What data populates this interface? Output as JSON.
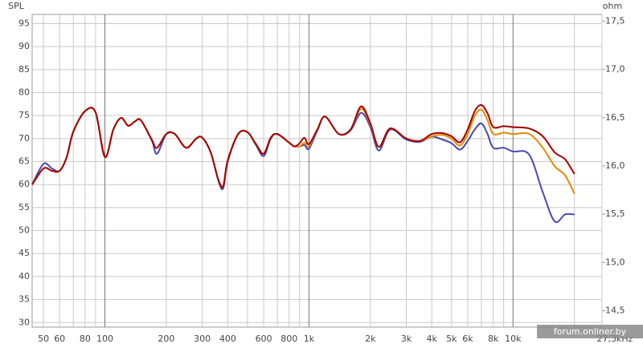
{
  "chart_data": {
    "type": "line",
    "ylabel": "SPL",
    "y2label": "ohm",
    "watermark": "forum.onliner.by",
    "xscale": "log",
    "grid": true,
    "xlim": [
      44,
      27300
    ],
    "ylim": [
      29,
      97
    ],
    "y2lim": [
      14.33,
      17.57
    ],
    "xticks": [
      50,
      60,
      80,
      100,
      200,
      300,
      400,
      600,
      800,
      {
        "value": 1000,
        "label": "1k"
      },
      {
        "value": 2000,
        "label": "2k"
      },
      {
        "value": 3000,
        "label": "3k"
      },
      {
        "value": 4000,
        "label": "4k"
      },
      {
        "value": 5000,
        "label": "5k"
      },
      {
        "value": 6000,
        "label": "6k"
      },
      {
        "value": 8000,
        "label": "8k"
      },
      {
        "value": 10000,
        "label": "10k"
      },
      {
        "value": 27300,
        "label": "27,3kHz"
      }
    ],
    "xminor": [
      70,
      90,
      500,
      700,
      900,
      7000,
      9000,
      20000
    ],
    "yticks": [
      30,
      35,
      40,
      45,
      50,
      55,
      60,
      65,
      70,
      75,
      80,
      85,
      90,
      95
    ],
    "y2ticks": [
      {
        "value": 14.5,
        "label": "14,5"
      },
      {
        "value": 15,
        "label": "15,0"
      },
      {
        "value": 15.5,
        "label": "15,5"
      },
      {
        "value": 16,
        "label": "16,0"
      },
      {
        "value": 16.5,
        "label": "16,5"
      },
      {
        "value": 17,
        "label": "17,0"
      },
      {
        "value": 17.5,
        "label": "17,5"
      }
    ],
    "x": [
      44,
      50,
      55,
      60,
      65,
      70,
      80,
      90,
      100,
      110,
      120,
      130,
      140,
      150,
      170,
      180,
      200,
      220,
      250,
      280,
      300,
      330,
      360,
      380,
      400,
      450,
      500,
      550,
      600,
      650,
      700,
      800,
      850,
      900,
      950,
      1000,
      1100,
      1200,
      1400,
      1600,
      1800,
      2000,
      2200,
      2500,
      3000,
      3500,
      4000,
      4500,
      5000,
      5500,
      6000,
      6500,
      7000,
      7500,
      8000,
      9000,
      10000,
      12000,
      14000,
      16000,
      18000,
      20000
    ],
    "series": [
      {
        "color": "#4848b4",
        "values": [
          60,
          64.5,
          63.5,
          63,
          66,
          71.5,
          76,
          75.7,
          66,
          72,
          74.5,
          72.8,
          73.7,
          74,
          69.5,
          66.7,
          71,
          71,
          68,
          70,
          70.2,
          67,
          60.8,
          59.2,
          65,
          71,
          71.4,
          68.6,
          66.2,
          70,
          71,
          69.1,
          68.3,
          68.3,
          68.6,
          67.8,
          71.8,
          74.8,
          71,
          71.8,
          75.6,
          72.5,
          67.4,
          72,
          69.8,
          69.3,
          70.4,
          69.8,
          69,
          67.6,
          69.5,
          72,
          73.3,
          71,
          68,
          68,
          67.2,
          66.5,
          58.3,
          52,
          53.5,
          53.5
        ]
      },
      {
        "color": "#e38b00",
        "values": [
          60,
          63.5,
          63,
          63,
          66,
          71.5,
          76,
          75.7,
          66,
          72,
          74.5,
          72.8,
          73.7,
          74,
          69.7,
          68,
          71,
          71,
          68,
          70,
          70.2,
          67,
          61,
          59.7,
          65.3,
          71,
          71.4,
          68.8,
          66.7,
          70.2,
          71,
          69.1,
          68.3,
          68.3,
          69.1,
          68.3,
          72,
          74.8,
          71,
          72,
          76.5,
          73,
          68.2,
          72.2,
          70,
          69.5,
          70.5,
          70.8,
          70,
          68.5,
          71,
          75,
          76.3,
          74,
          71,
          71.3,
          71,
          71,
          68,
          64,
          62,
          58
        ]
      },
      {
        "color": "#a30000",
        "values": [
          60,
          63.5,
          63,
          63,
          66,
          71.5,
          76,
          75.7,
          66,
          72,
          74.5,
          72.8,
          73.7,
          74,
          69.7,
          68,
          71,
          71,
          68,
          70,
          70.2,
          67,
          61,
          59.7,
          65.3,
          71,
          71.4,
          68.8,
          66.7,
          70.2,
          71,
          69.1,
          68.3,
          69,
          70.2,
          68.8,
          72,
          74.8,
          71,
          72,
          77,
          73.3,
          68.2,
          72.2,
          70,
          69.5,
          71,
          71.2,
          70.5,
          69.2,
          72,
          76,
          77.3,
          75.5,
          72.5,
          72.7,
          72.5,
          72.2,
          70.5,
          67,
          65.5,
          62.3
        ]
      }
    ]
  }
}
